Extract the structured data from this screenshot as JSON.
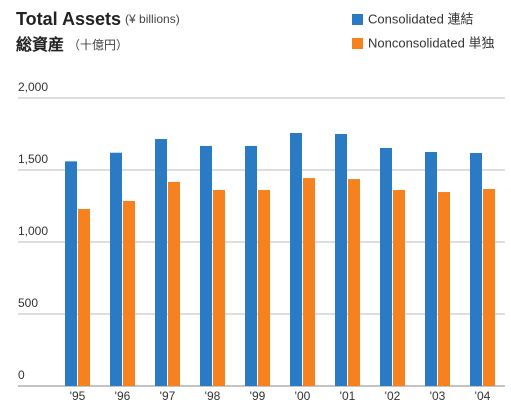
{
  "chart_data": {
    "type": "bar",
    "title": "Total Assets",
    "title_note": "(¥ billions)",
    "subtitle": "総資産",
    "subtitle_note": "（十億円）",
    "categories": [
      "'95",
      "'96",
      "'97",
      "'98",
      "'99",
      "'00",
      "'01",
      "'02",
      "'03",
      "'04"
    ],
    "series": [
      {
        "name": "Consolidated 連結",
        "color": "#2b7bc4",
        "values": [
          1560,
          1620,
          1715,
          1667,
          1667,
          1757,
          1750,
          1653,
          1625,
          1618
        ]
      },
      {
        "name": "Nonconsolidated 単独",
        "color": "#f5821f",
        "values": [
          1229,
          1285,
          1417,
          1361,
          1361,
          1444,
          1437,
          1361,
          1347,
          1368
        ]
      }
    ],
    "ylim": [
      0,
      2000
    ],
    "yticks": [
      0,
      500,
      {
        "value": 1000,
        "label": "1,000"
      },
      {
        "value": 1500,
        "label": "1,500"
      },
      {
        "value": 2000,
        "label": "2,000"
      }
    ],
    "grid": true
  }
}
